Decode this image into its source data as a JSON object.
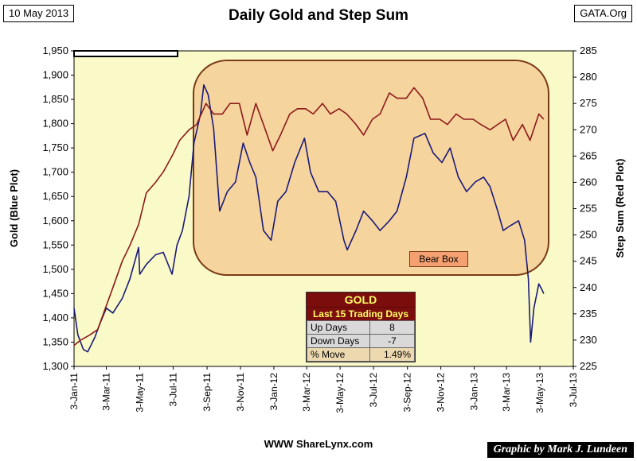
{
  "header": {
    "date": "10 May 2013",
    "title": "Daily Gold and Step Sum",
    "site": "GATA.Org"
  },
  "footer": {
    "source": "WWW ShareLynx.com",
    "credit": "Graphic by Mark J. Lundeen"
  },
  "chart_data": {
    "type": "line",
    "title": "Daily Gold and Step Sum",
    "ylabel": "Gold  (Blue Plot)",
    "y2label": "Step Sum  (Red Plot)",
    "x_ticks": [
      "3-Jan-11",
      "3-Mar-11",
      "3-May-11",
      "3-Jul-11",
      "3-Sep-11",
      "3-Nov-11",
      "3-Jan-12",
      "3-Mar-12",
      "3-May-12",
      "3-Jul-12",
      "3-Sep-12",
      "3-Nov-12",
      "3-Jan-13",
      "3-Mar-13",
      "3-May-13",
      "3-Jul-13"
    ],
    "y_ticks": [
      "1,300",
      "1,350",
      "1,400",
      "1,450",
      "1,500",
      "1,550",
      "1,600",
      "1,650",
      "1,700",
      "1,750",
      "1,800",
      "1,850",
      "1,900",
      "1,950"
    ],
    "y2_ticks": [
      "225",
      "230",
      "235",
      "240",
      "245",
      "250",
      "255",
      "260",
      "265",
      "270",
      "275",
      "280",
      "285"
    ],
    "ylim": [
      1300,
      1950
    ],
    "y2lim": [
      225,
      285
    ],
    "grid": false,
    "plot_bg": "#fafac8",
    "series": [
      {
        "name": "Gold",
        "axis": "left",
        "color": "#1a1a7a",
        "x": [
          "2011-01-03",
          "2011-01-10",
          "2011-01-20",
          "2011-01-28",
          "2011-02-10",
          "2011-02-20",
          "2011-03-03",
          "2011-03-15",
          "2011-04-01",
          "2011-04-15",
          "2011-05-01",
          "2011-05-03",
          "2011-05-15",
          "2011-06-01",
          "2011-06-15",
          "2011-07-01",
          "2011-07-10",
          "2011-07-20",
          "2011-08-01",
          "2011-08-10",
          "2011-08-22",
          "2011-08-28",
          "2011-09-05",
          "2011-09-15",
          "2011-09-26",
          "2011-10-10",
          "2011-10-25",
          "2011-11-08",
          "2011-11-20",
          "2011-12-01",
          "2011-12-15",
          "2011-12-29",
          "2012-01-10",
          "2012-01-25",
          "2012-02-10",
          "2012-02-28",
          "2012-03-10",
          "2012-03-25",
          "2012-04-10",
          "2012-04-25",
          "2012-05-10",
          "2012-05-16",
          "2012-06-01",
          "2012-06-15",
          "2012-07-01",
          "2012-07-15",
          "2012-08-01",
          "2012-08-15",
          "2012-09-01",
          "2012-09-15",
          "2012-10-05",
          "2012-10-20",
          "2012-11-05",
          "2012-11-20",
          "2012-12-05",
          "2012-12-20",
          "2013-01-05",
          "2013-01-20",
          "2013-02-01",
          "2013-02-15",
          "2013-02-25",
          "2013-03-10",
          "2013-03-25",
          "2013-04-05",
          "2013-04-12",
          "2013-04-16",
          "2013-04-22",
          "2013-05-01",
          "2013-05-06",
          "2013-05-10"
        ],
        "values": [
          1420,
          1365,
          1335,
          1330,
          1360,
          1390,
          1420,
          1410,
          1440,
          1480,
          1545,
          1490,
          1510,
          1530,
          1535,
          1490,
          1550,
          1580,
          1650,
          1760,
          1820,
          1880,
          1860,
          1790,
          1620,
          1660,
          1680,
          1760,
          1720,
          1690,
          1580,
          1560,
          1640,
          1660,
          1720,
          1770,
          1700,
          1660,
          1660,
          1640,
          1560,
          1540,
          1580,
          1620,
          1600,
          1580,
          1600,
          1620,
          1690,
          1770,
          1780,
          1740,
          1720,
          1750,
          1690,
          1660,
          1680,
          1690,
          1670,
          1620,
          1580,
          1590,
          1600,
          1560,
          1480,
          1350,
          1420,
          1470,
          1460,
          1450
        ]
      },
      {
        "name": "Step Sum",
        "axis": "right",
        "color": "#8b1a1a",
        "x": [
          "2011-01-03",
          "2011-01-15",
          "2011-02-01",
          "2011-02-15",
          "2011-03-01",
          "2011-03-15",
          "2011-04-01",
          "2011-04-15",
          "2011-05-01",
          "2011-05-15",
          "2011-06-01",
          "2011-06-15",
          "2011-07-01",
          "2011-07-15",
          "2011-08-01",
          "2011-08-15",
          "2011-09-01",
          "2011-09-15",
          "2011-10-01",
          "2011-10-15",
          "2011-11-01",
          "2011-11-15",
          "2011-12-01",
          "2011-12-15",
          "2012-01-01",
          "2012-01-15",
          "2012-02-01",
          "2012-02-15",
          "2012-03-01",
          "2012-03-15",
          "2012-04-01",
          "2012-04-15",
          "2012-05-01",
          "2012-05-15",
          "2012-06-01",
          "2012-06-15",
          "2012-07-01",
          "2012-07-15",
          "2012-08-01",
          "2012-08-15",
          "2012-09-01",
          "2012-09-15",
          "2012-10-01",
          "2012-10-15",
          "2012-11-01",
          "2012-11-15",
          "2012-12-01",
          "2012-12-15",
          "2013-01-01",
          "2013-01-15",
          "2013-02-01",
          "2013-02-15",
          "2013-03-01",
          "2013-03-15",
          "2013-04-01",
          "2013-04-15",
          "2013-05-01",
          "2013-05-10"
        ],
        "values": [
          229,
          230,
          231,
          232,
          236,
          240,
          245,
          248,
          252,
          258,
          260,
          262,
          265,
          268,
          270,
          271,
          275,
          273,
          273,
          275,
          275,
          269,
          275,
          271,
          266,
          269,
          273,
          274,
          274,
          273,
          275,
          273,
          274,
          273,
          271,
          269,
          272,
          273,
          277,
          276,
          276,
          278,
          276,
          272,
          272,
          271,
          273,
          272,
          272,
          271,
          270,
          271,
          272,
          268,
          271,
          268,
          273,
          272
        ]
      }
    ],
    "annotations": {
      "box_label": "Bear Box"
    },
    "stats_table": {
      "title": "GOLD",
      "subtitle": "Last 15 Trading Days",
      "rows": [
        {
          "label": "Up Days",
          "value": "8"
        },
        {
          "label": "Down Days",
          "value": "-7"
        },
        {
          "label": "% Move",
          "value": "1.49%"
        }
      ]
    }
  }
}
